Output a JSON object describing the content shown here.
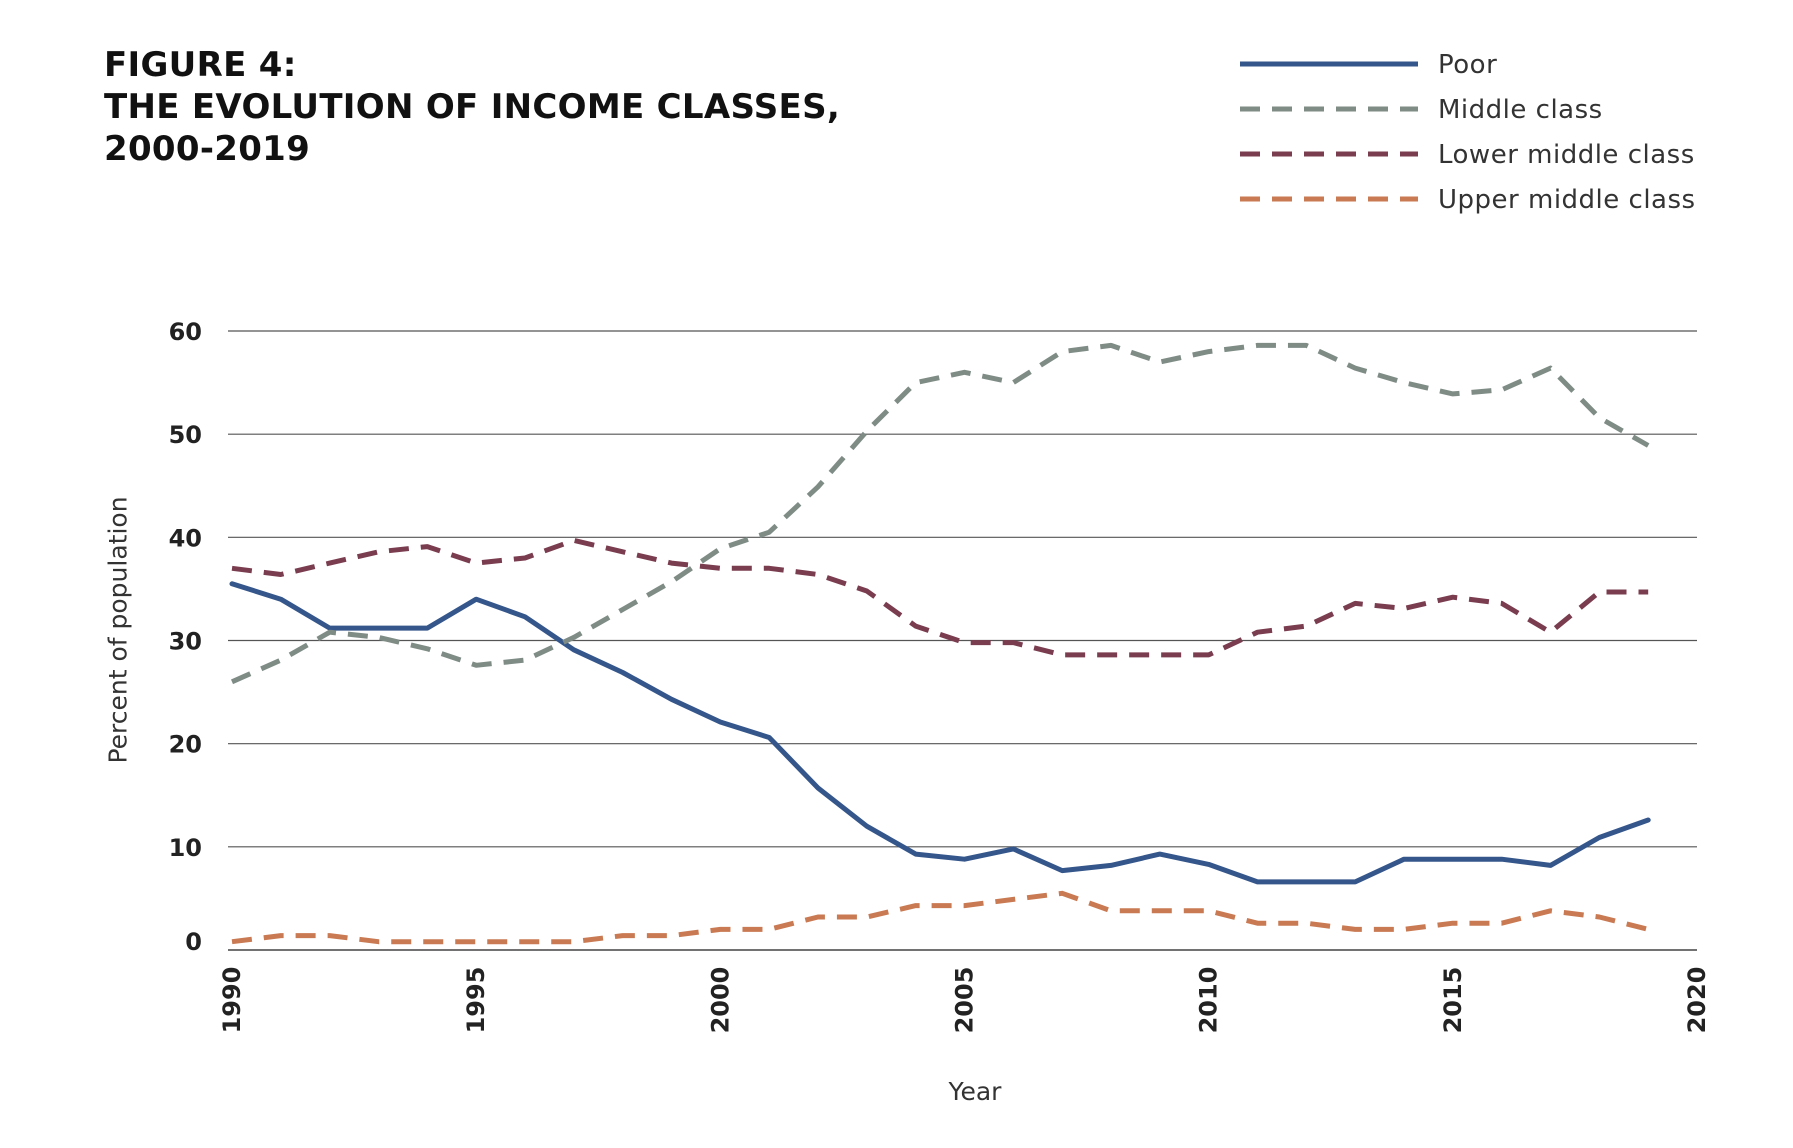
{
  "figure": {
    "title_lines": [
      "FIGURE 4:",
      "THE EVOLUTION OF INCOME CLASSES,",
      "2000-2019"
    ]
  },
  "chart_data": {
    "type": "line",
    "xlabel": "Year",
    "ylabel": "Percent of population",
    "xlim": [
      1990,
      2020
    ],
    "ylim": [
      0,
      60
    ],
    "x_ticks": [
      1990,
      1995,
      2000,
      2005,
      2010,
      2015,
      2020
    ],
    "y_ticks": [
      0,
      10,
      20,
      30,
      40,
      50,
      60
    ],
    "grid": "horizontal",
    "legend_position": "top-right",
    "x": [
      1990,
      1991,
      1992,
      1993,
      1994,
      1995,
      1996,
      1997,
      1998,
      1999,
      2000,
      2001,
      2002,
      2003,
      2004,
      2005,
      2006,
      2007,
      2008,
      2009,
      2010,
      2011,
      2012,
      2013,
      2014,
      2015,
      2016,
      2017,
      2018,
      2019
    ],
    "series": [
      {
        "name": "Poor",
        "color": "#34568b",
        "style": "solid",
        "values": [
          35.5,
          34,
          31.2,
          31.2,
          31.2,
          34,
          32.3,
          29.1,
          26.9,
          24.3,
          22.1,
          20.6,
          15.7,
          12,
          9.3,
          8.8,
          9.8,
          7.7,
          8.2,
          9.3,
          8.3,
          6.6,
          6.6,
          6.6,
          8.8,
          8.8,
          8.8,
          8.2,
          10.9,
          12.6
        ]
      },
      {
        "name": "Middle class",
        "color": "#7f8c86",
        "style": "dashed",
        "values": [
          26,
          28.1,
          30.8,
          30.3,
          29.2,
          27.6,
          28.1,
          30.3,
          33,
          35.7,
          38.9,
          40.5,
          44.9,
          50.3,
          55,
          56,
          55,
          58,
          58.6,
          57,
          58,
          58.6,
          58.6,
          56.4,
          55,
          53.9,
          54.3,
          56.4,
          51.6,
          48.9
        ]
      },
      {
        "name": "Lower middle class",
        "color": "#7a3c4f",
        "style": "dashed",
        "values": [
          37,
          36.4,
          37.5,
          38.6,
          39.1,
          37.5,
          38,
          39.7,
          38.6,
          37.5,
          37,
          37,
          36.4,
          34.8,
          31.4,
          29.8,
          29.8,
          28.6,
          28.6,
          28.6,
          28.6,
          30.8,
          31.4,
          33.6,
          33.1,
          34.2,
          33.6,
          30.8,
          34.7,
          34.7
        ]
      },
      {
        "name": "Upper middle class",
        "color": "#c97a52",
        "style": "dashed",
        "values": [
          0.8,
          1.4,
          1.4,
          0.8,
          0.8,
          0.8,
          0.8,
          0.8,
          1.4,
          1.4,
          2,
          2,
          3.2,
          3.2,
          4.3,
          4.3,
          4.9,
          5.5,
          3.8,
          3.8,
          3.8,
          2.6,
          2.6,
          2,
          2,
          2.6,
          2.6,
          3.8,
          3.2,
          2
        ]
      }
    ]
  }
}
